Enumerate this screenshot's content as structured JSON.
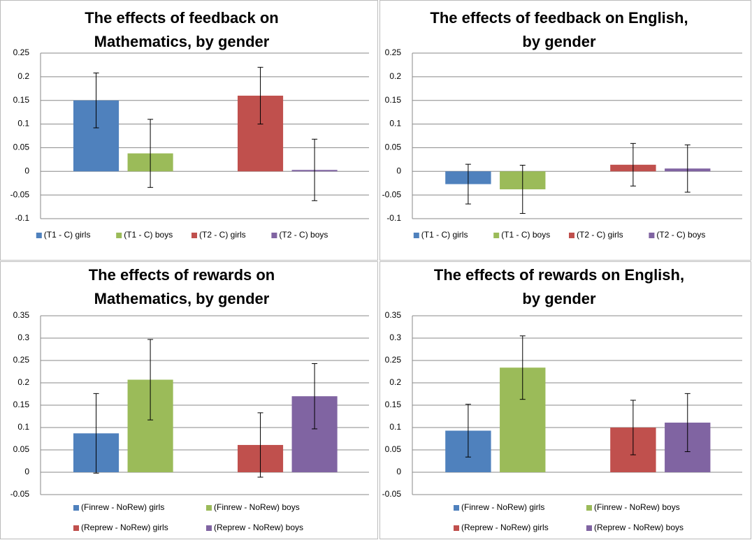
{
  "chart_data": [
    {
      "type": "bar",
      "title": [
        "The effects of feedback on",
        "Mathematics, by gender"
      ],
      "ylim": [
        -0.1,
        0.25
      ],
      "yticks": [
        -0.1,
        -0.05,
        0,
        0.05,
        0.1,
        0.15,
        0.2,
        0.25
      ],
      "grid": true,
      "legend": "bottom",
      "series": [
        {
          "name": "(T1 - C) girls",
          "color": "#4f81bd",
          "values": [
            0.15
          ],
          "errors": [
            0.058
          ]
        },
        {
          "name": "(T1 - C) boys",
          "color": "#9bbb59",
          "values": [
            0.038
          ],
          "errors": [
            0.072
          ]
        },
        {
          "name": "(T2 - C) girls",
          "color": "#c0504d",
          "values": [
            0.16
          ],
          "errors": [
            0.06
          ]
        },
        {
          "name": "(T2 - C) boys",
          "color": "#8064a2",
          "values": [
            0.003
          ],
          "errors": [
            0.065
          ]
        }
      ]
    },
    {
      "type": "bar",
      "title": [
        "The effects of feedback on English,",
        "by gender"
      ],
      "ylim": [
        -0.1,
        0.25
      ],
      "yticks": [
        -0.1,
        -0.05,
        0,
        0.05,
        0.1,
        0.15,
        0.2,
        0.25
      ],
      "grid": true,
      "legend": "bottom",
      "series": [
        {
          "name": "(T1 - C) girls",
          "color": "#4f81bd",
          "values": [
            -0.027
          ],
          "errors": [
            0.042
          ]
        },
        {
          "name": "(T1 - C) boys",
          "color": "#9bbb59",
          "values": [
            -0.038
          ],
          "errors": [
            0.051
          ]
        },
        {
          "name": "(T2 - C) girls",
          "color": "#c0504d",
          "values": [
            0.014
          ],
          "errors": [
            0.045
          ]
        },
        {
          "name": "(T2 - C) boys",
          "color": "#8064a2",
          "values": [
            0.006
          ],
          "errors": [
            0.05
          ]
        }
      ]
    },
    {
      "type": "bar",
      "title": [
        "The effects of rewards on",
        "Mathematics, by gender"
      ],
      "ylim": [
        -0.05,
        0.35
      ],
      "yticks": [
        -0.05,
        0,
        0.05,
        0.1,
        0.15,
        0.2,
        0.25,
        0.3,
        0.35
      ],
      "grid": true,
      "legend": "bottom",
      "series": [
        {
          "name": "(Finrew - NoRew) girls",
          "color": "#4f81bd",
          "values": [
            0.087
          ],
          "errors": [
            0.089
          ]
        },
        {
          "name": "(Finrew - NoRew) boys",
          "color": "#9bbb59",
          "values": [
            0.207
          ],
          "errors": [
            0.09
          ]
        },
        {
          "name": "(Reprew - NoRew) girls",
          "color": "#c0504d",
          "values": [
            0.061
          ],
          "errors": [
            0.072
          ]
        },
        {
          "name": "(Reprew - NoRew) boys",
          "color": "#8064a2",
          "values": [
            0.17
          ],
          "errors": [
            0.073
          ]
        }
      ]
    },
    {
      "type": "bar",
      "title": [
        "The effects of rewards on English,",
        "by gender"
      ],
      "ylim": [
        -0.05,
        0.35
      ],
      "yticks": [
        -0.05,
        0,
        0.05,
        0.1,
        0.15,
        0.2,
        0.25,
        0.3,
        0.35
      ],
      "grid": true,
      "legend": "bottom",
      "series": [
        {
          "name": "(Finrew - NoRew) girls",
          "color": "#4f81bd",
          "values": [
            0.093
          ],
          "errors": [
            0.059
          ]
        },
        {
          "name": "(Finrew - NoRew) boys",
          "color": "#9bbb59",
          "values": [
            0.234
          ],
          "errors": [
            0.071
          ]
        },
        {
          "name": "(Reprew - NoRew) girls",
          "color": "#c0504d",
          "values": [
            0.1
          ],
          "errors": [
            0.061
          ]
        },
        {
          "name": "(Reprew - NoRew) boys",
          "color": "#8064a2",
          "values": [
            0.111
          ],
          "errors": [
            0.065
          ]
        }
      ]
    }
  ]
}
